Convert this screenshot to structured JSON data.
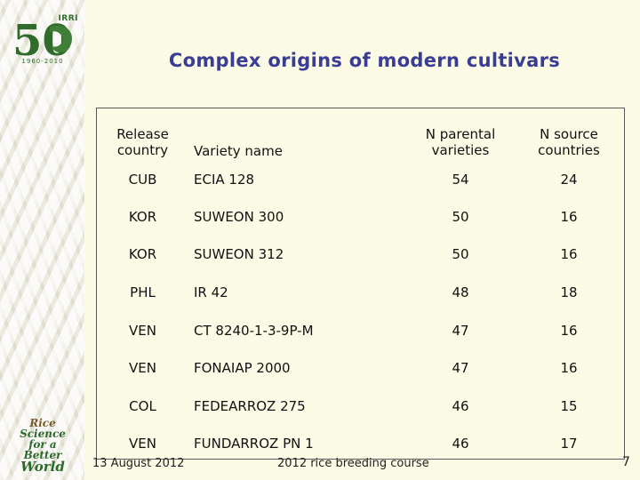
{
  "logos": {
    "top_tag": "IRRI",
    "top_numeral": "50",
    "top_years": "1960-2010",
    "bottom_lines": [
      "Rice",
      "Science",
      "for a Better",
      "World"
    ]
  },
  "title": "Complex origins of modern cultivars",
  "table": {
    "headers": {
      "country": [
        "Release",
        "country"
      ],
      "variety": "Variety name",
      "parental": [
        "N parental",
        "varieties"
      ],
      "source": [
        "N source",
        "countries"
      ]
    },
    "rows": [
      {
        "country": "CUB",
        "variety": "ECIA 128",
        "parental": "54",
        "source": "24"
      },
      {
        "country": "KOR",
        "variety": "SUWEON 300",
        "parental": "50",
        "source": "16"
      },
      {
        "country": "KOR",
        "variety": "SUWEON 312",
        "parental": "50",
        "source": "16"
      },
      {
        "country": "PHL",
        "variety": "IR 42",
        "parental": "48",
        "source": "18"
      },
      {
        "country": "VEN",
        "variety": "CT 8240-1-3-9P-M",
        "parental": "47",
        "source": "16"
      },
      {
        "country": "VEN",
        "variety": "FONAIAP 2000",
        "parental": "47",
        "source": "16"
      },
      {
        "country": "COL",
        "variety": "FEDEARROZ 275",
        "parental": "46",
        "source": "15"
      },
      {
        "country": "VEN",
        "variety": "FUNDARROZ PN 1",
        "parental": "46",
        "source": "17"
      }
    ]
  },
  "footer": {
    "date": "13 August 2012",
    "course": "2012 rice breeding course",
    "page": "7"
  },
  "colors": {
    "background": "#fbfbe6",
    "title": "#3a3d95",
    "logo_green": "#2f6b2a"
  }
}
